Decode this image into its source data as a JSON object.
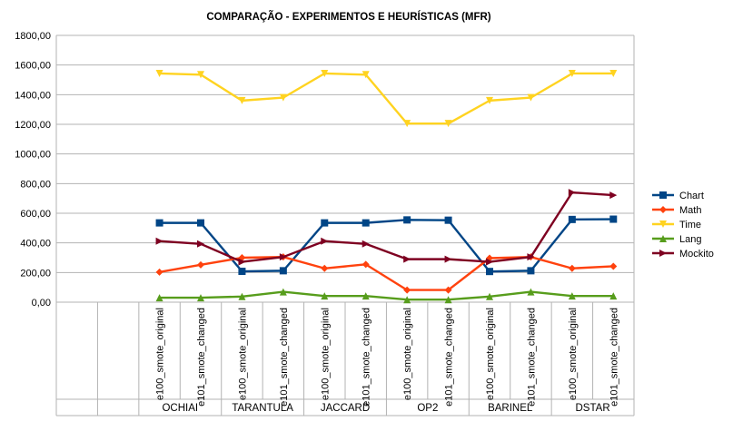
{
  "chart_data": {
    "type": "line",
    "title": "COMPARAÇÃO - EXPERIMENTOS E HEURÍSTICAS (MFR)",
    "xlabel": "",
    "ylabel": "",
    "ylim": [
      0,
      1800
    ],
    "yticks": [
      "0,00",
      "200,00",
      "400,00",
      "600,00",
      "800,00",
      "1000,00",
      "1200,00",
      "1400,00",
      "1600,00",
      "1800,00"
    ],
    "grid": true,
    "legend_position": "right",
    "categories": [
      "e100_smote_original",
      "e101_smote_changed",
      "e100_smote_original",
      "e101_smote_changed",
      "e100_smote_original",
      "e101_smote_changed",
      "e100_smote_original",
      "e101_smote_changed",
      "e100_smote_original",
      "e101_smote_changed",
      "e100_smote_original",
      "e101_smote_changed"
    ],
    "groups": [
      "OCHIAI",
      "TARANTULA",
      "JACCARD",
      "OP2",
      "BARINEL",
      "DSTAR"
    ],
    "series": [
      {
        "name": "Chart",
        "color": "#004586",
        "marker": "square",
        "values": [
          535,
          535,
          208,
          212,
          535,
          535,
          555,
          553,
          207,
          212,
          558,
          560
        ]
      },
      {
        "name": "Math",
        "color": "#ff420e",
        "marker": "diamond",
        "values": [
          203,
          252,
          300,
          305,
          228,
          255,
          82,
          82,
          297,
          305,
          228,
          242
        ]
      },
      {
        "name": "Time",
        "color": "#ffd320",
        "marker": "triangle-down",
        "values": [
          1543,
          1535,
          1360,
          1380,
          1543,
          1535,
          1205,
          1205,
          1360,
          1380,
          1543,
          1543
        ]
      },
      {
        "name": "Lang",
        "color": "#579d1c",
        "marker": "triangle-up",
        "values": [
          30,
          30,
          38,
          70,
          42,
          42,
          17,
          17,
          38,
          70,
          42,
          42
        ]
      },
      {
        "name": "Mockito",
        "color": "#7e0021",
        "marker": "triangle-right",
        "values": [
          412,
          393,
          272,
          305,
          412,
          393,
          290,
          290,
          272,
          305,
          740,
          722
        ]
      }
    ]
  }
}
